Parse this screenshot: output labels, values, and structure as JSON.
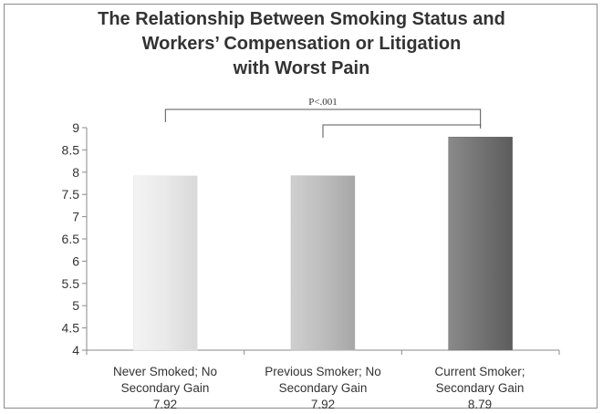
{
  "chart_data": {
    "type": "bar",
    "title_lines": [
      "The Relationship Between Smoking Status and",
      "Workers’ Compensation or Litigation",
      "with Worst Pain"
    ],
    "categories": [
      {
        "lines": [
          "Never Smoked; No",
          "Secondary Gain"
        ],
        "value_label": "7.92"
      },
      {
        "lines": [
          "Previous Smoker; No",
          "Secondary Gain"
        ],
        "value_label": "7.92"
      },
      {
        "lines": [
          "Current Smoker;",
          "Secondary Gain"
        ],
        "value_label": "8.79"
      }
    ],
    "values": [
      7.92,
      7.92,
      8.79
    ],
    "bar_colors": [
      "#e4e4e4",
      "#b9b9b9",
      "#6f6f6f"
    ],
    "ylim": [
      4,
      9
    ],
    "yticks": [
      "4",
      "4.5",
      "5",
      "5.5",
      "6",
      "6.5",
      "7",
      "7.5",
      "8",
      "8.5",
      "9"
    ],
    "grid": false,
    "annotations": [
      {
        "text": "P<.001",
        "from_category": 0,
        "to_category": 2
      },
      {
        "text": "",
        "from_category": 1,
        "to_category": 2
      }
    ]
  }
}
